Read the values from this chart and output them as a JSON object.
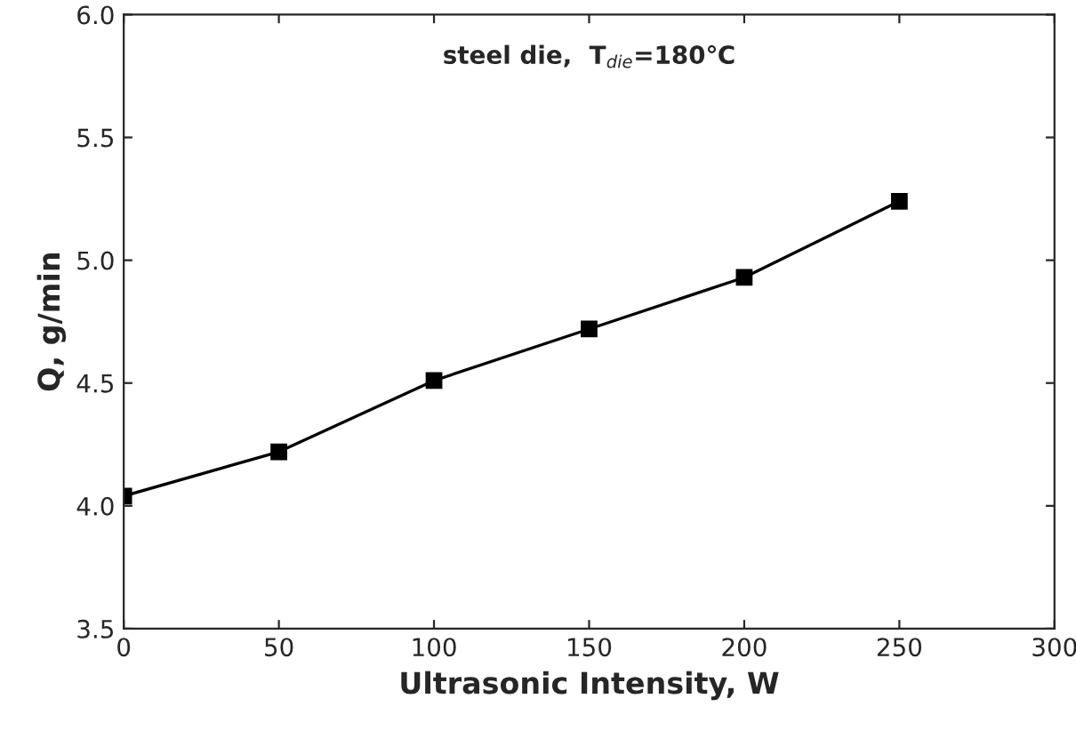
{
  "chart_data": {
    "type": "line",
    "xlabel": "Ultrasonic Intensity, W",
    "ylabel": "Q, g/min",
    "annotations": [
      "steel die,  T$_{die}$=180℃"
    ],
    "x": [
      0,
      50,
      100,
      150,
      200,
      250
    ],
    "series": [
      {
        "color": "#000000",
        "values": [
          4.04,
          4.22,
          4.51,
          4.72,
          4.93,
          5.24
        ]
      }
    ],
    "marker": "square",
    "line_style": "solid",
    "grid": false,
    "legend": false,
    "xlim": [
      0,
      300
    ],
    "xticks": [
      0,
      50,
      100,
      150,
      200,
      250,
      300
    ],
    "ylim": [
      3.5,
      6.0
    ],
    "yticks": [
      {
        "value": 3.5,
        "label": "3.5"
      },
      {
        "value": 4.0,
        "label": "4.0"
      },
      {
        "value": 4.5,
        "label": "4.5"
      },
      {
        "value": 5.0,
        "label": "5.0"
      },
      {
        "value": 5.5,
        "label": "5.5"
      },
      {
        "value": 6.0,
        "label": "6.0"
      }
    ]
  }
}
